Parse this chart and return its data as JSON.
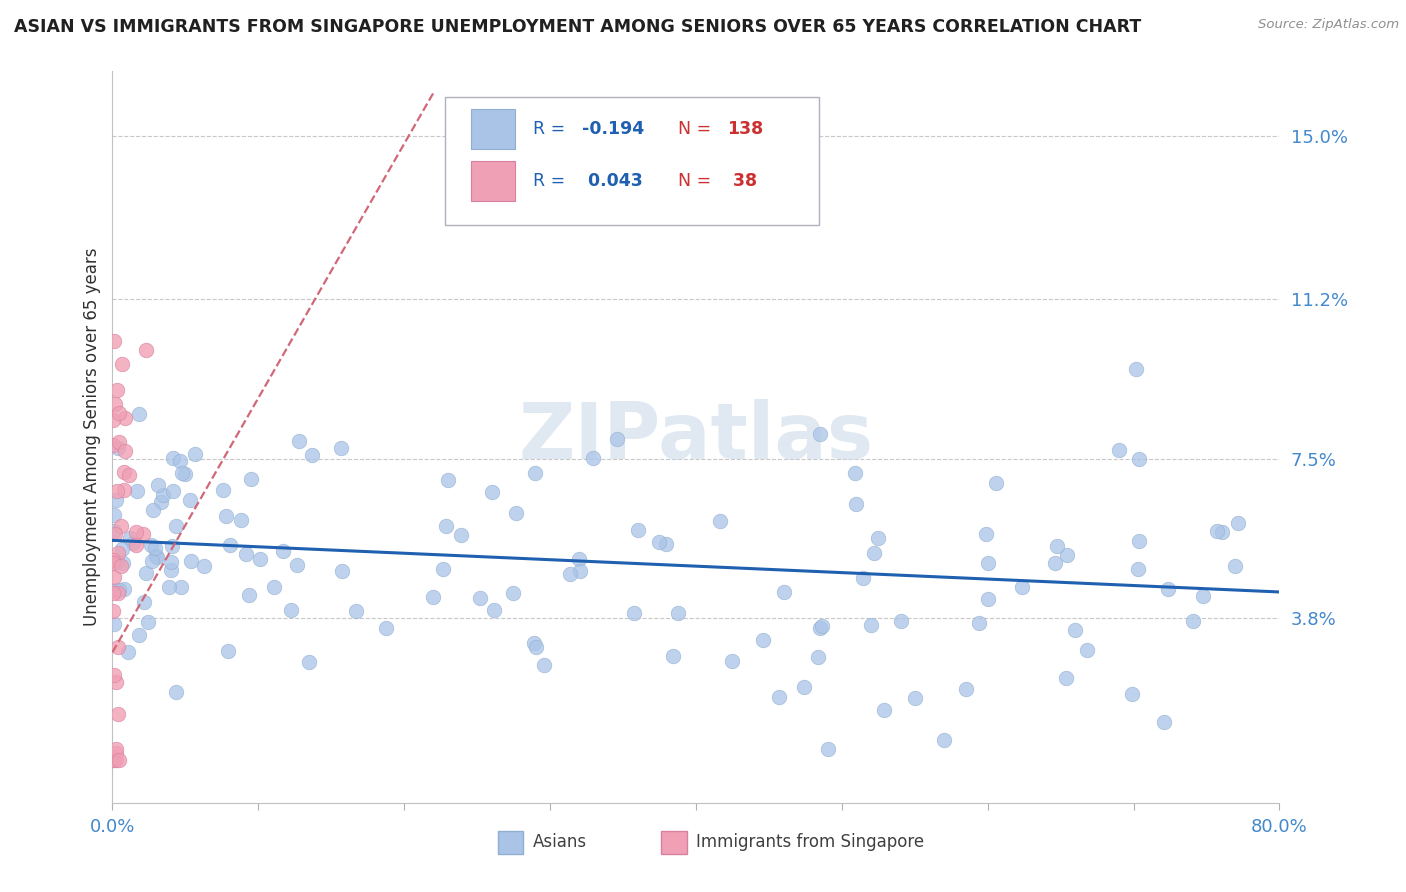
{
  "title": "ASIAN VS IMMIGRANTS FROM SINGAPORE UNEMPLOYMENT AMONG SENIORS OVER 65 YEARS CORRELATION CHART",
  "source": "Source: ZipAtlas.com",
  "ylabel": "Unemployment Among Seniors over 65 years",
  "xlim": [
    0,
    0.8
  ],
  "ylim": [
    -0.005,
    0.165
  ],
  "xticks": [
    0.0,
    0.1,
    0.2,
    0.3,
    0.4,
    0.5,
    0.6,
    0.7,
    0.8
  ],
  "xticklabels": [
    "0.0%",
    "",
    "",
    "",
    "",
    "",
    "",
    "",
    "80.0%"
  ],
  "ytick_positions": [
    0.038,
    0.075,
    0.112,
    0.15
  ],
  "ytick_labels": [
    "3.8%",
    "7.5%",
    "11.2%",
    "15.0%"
  ],
  "asian_color": "#aac4e8",
  "asian_edge_color": "#90aed0",
  "singapore_color": "#f0a0b4",
  "singapore_edge_color": "#d880a0",
  "trend_asian_color": "#2060b0",
  "trend_singapore_color": "#d06878",
  "watermark": "ZIPatlas",
  "asian_R": -0.194,
  "asian_N": 138,
  "singapore_R": 0.043,
  "singapore_N": 38,
  "grid_color": "#c8c8c8",
  "background_color": "#ffffff",
  "title_color": "#202020",
  "axis_label_color": "#303030",
  "tick_label_color": "#4488cc",
  "legend_R_color": "#2060b0",
  "legend_N_color": "#cc3030",
  "trend_asian_start_x": 0.0,
  "trend_asian_start_y": 0.056,
  "trend_asian_end_x": 0.8,
  "trend_asian_end_y": 0.044,
  "trend_sg_start_x": 0.0,
  "trend_sg_start_y": 0.03,
  "trend_sg_end_x": 0.22,
  "trend_sg_end_y": 0.16
}
